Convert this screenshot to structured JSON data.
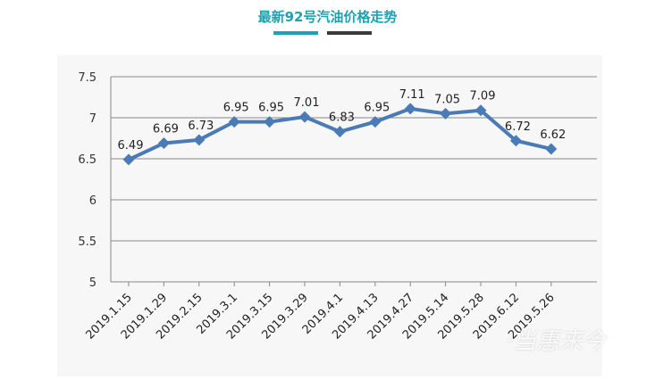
{
  "header": {
    "title": "最新92号汽油价格走势",
    "accent_color": "#1aa3b0",
    "dark_color": "#3a3a3a"
  },
  "watermark": {
    "text": "·当惠来今"
  },
  "chart_data": {
    "type": "line",
    "title": "最新92号汽油价格走势",
    "xlabel": "",
    "ylabel": "",
    "categories": [
      "2019.1.15",
      "2019.1.29",
      "2019.2.15",
      "2019.3.1",
      "2019.3.15",
      "2019.3.29",
      "2019.4.1",
      "2019.4.13",
      "2019.4.27",
      "2019.5.14",
      "2019.5.28",
      "2019.6.12",
      "2019.5.26"
    ],
    "series": [
      {
        "values": [
          6.49,
          6.69,
          6.73,
          6.95,
          6.95,
          7.01,
          6.83,
          6.95,
          7.11,
          7.05,
          7.09,
          6.72,
          6.62
        ]
      }
    ],
    "data_labels": [
      "6.49",
      "6.69",
      "6.73",
      "6.95",
      "6.95",
      "7.01",
      "6.83",
      "6.95",
      "7.11",
      "7.05",
      "7.09",
      "6.72",
      "6.62"
    ],
    "ylim": [
      5,
      7.5
    ],
    "yticks": [
      "5",
      "5.5",
      "6",
      "6.5",
      "7",
      "7.5"
    ],
    "ytick_values": [
      5,
      5.5,
      6,
      6.5,
      7,
      7.5
    ],
    "grid": true,
    "legend": "none",
    "line_color": "#4a7bb7",
    "grid_color": "#8a8a8a"
  }
}
